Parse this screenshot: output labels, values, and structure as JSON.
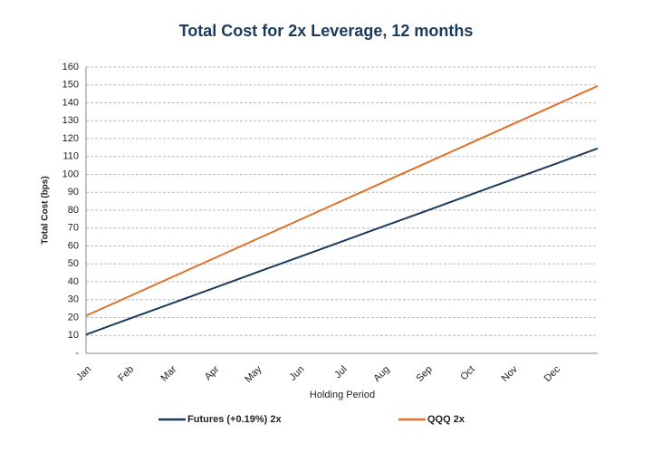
{
  "chart_data": {
    "type": "line",
    "title": "Total Cost for 2x Leverage, 12 months",
    "xlabel": "Holding Period",
    "ylabel": "Total Cost (bps)",
    "categories": [
      "Jan",
      "Feb",
      "Mar",
      "Apr",
      "May",
      "Jun",
      "Jul",
      "Aug",
      "Sep",
      "Oct",
      "Nov",
      "Dec",
      null
    ],
    "series": [
      {
        "name": "Futures (+0.19%) 2x",
        "color": "#1b3a5c",
        "values": [
          10.5,
          19.2,
          27.8,
          36.5,
          45.2,
          53.8,
          62.5,
          71.2,
          79.8,
          88.5,
          97.2,
          105.8,
          114.5
        ]
      },
      {
        "name": "QQQ 2x",
        "color": "#e0702a",
        "values": [
          21,
          31.7,
          42.4,
          53.1,
          63.8,
          74.5,
          85.2,
          95.9,
          106.6,
          117.3,
          128,
          138.7,
          149.4
        ]
      }
    ],
    "ylim": [
      0,
      160
    ],
    "yticks": [
      {
        "value": 0,
        "label": "-"
      },
      10,
      20,
      30,
      40,
      50,
      60,
      70,
      80,
      90,
      100,
      110,
      120,
      130,
      140,
      150,
      160
    ],
    "grid": true,
    "legend": "bottom"
  }
}
